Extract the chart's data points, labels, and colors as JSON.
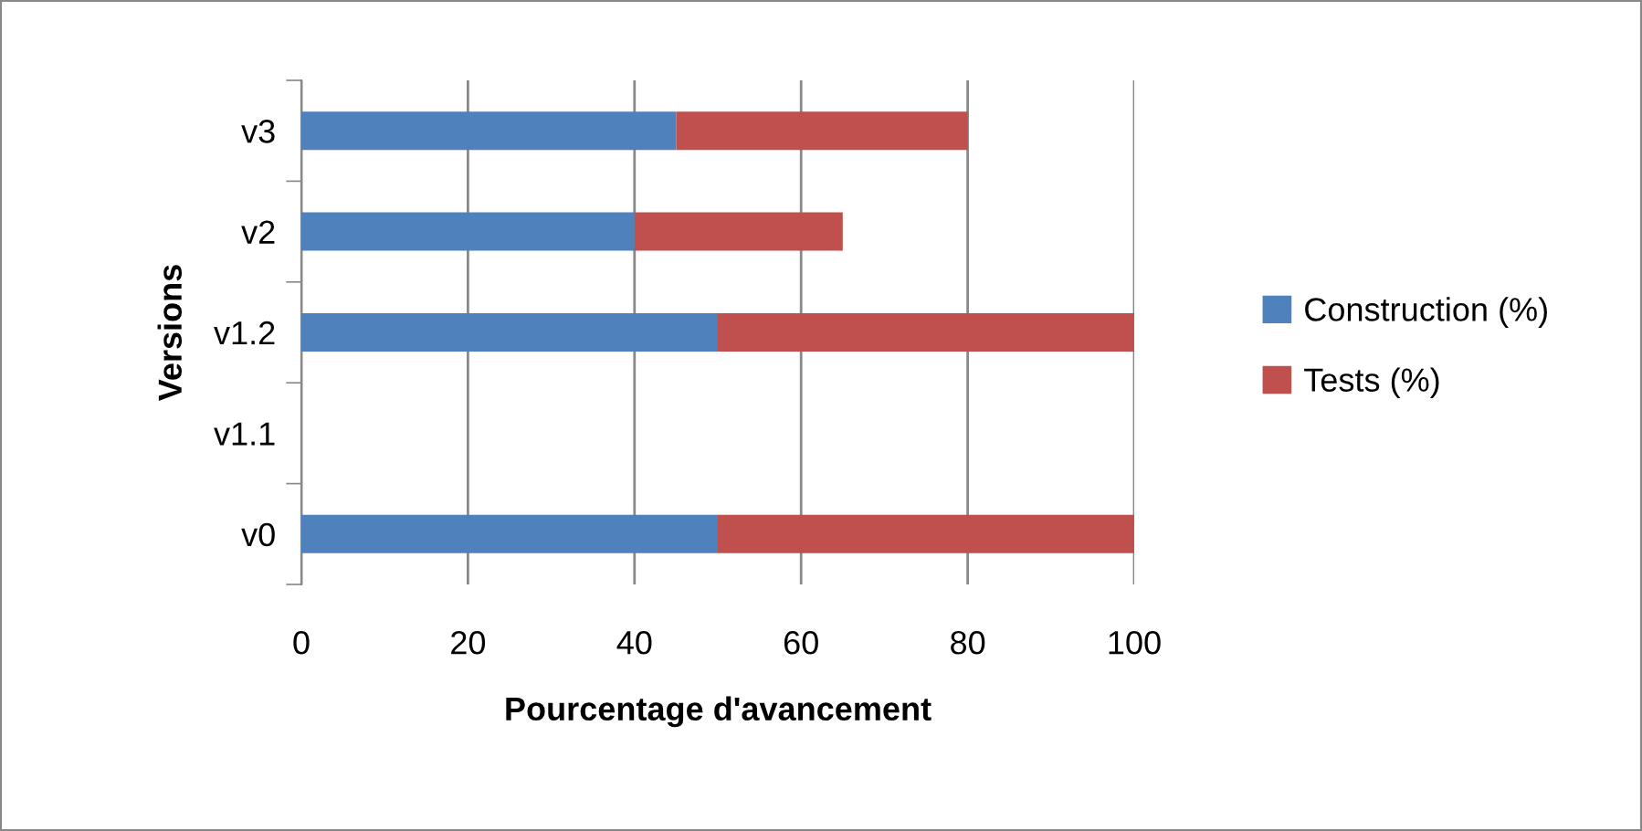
{
  "chart_data": {
    "type": "bar",
    "orientation": "horizontal",
    "stacked": true,
    "categories": [
      "v3",
      "v2",
      "v1.2",
      "v1.1",
      "v0"
    ],
    "series": [
      {
        "name": "Construction (%)",
        "color": "#4f81bd",
        "values": [
          45,
          40,
          50,
          null,
          50
        ]
      },
      {
        "name": "Tests (%)",
        "color": "#c0504d",
        "values": [
          35,
          25,
          50,
          null,
          50
        ]
      }
    ],
    "xlabel": "Pourcentage d'avancement",
    "ylabel": "Versions",
    "xlim": [
      0,
      100
    ],
    "xticks": [
      0,
      20,
      40,
      60,
      80,
      100
    ],
    "grid": "x",
    "legend": "right"
  }
}
